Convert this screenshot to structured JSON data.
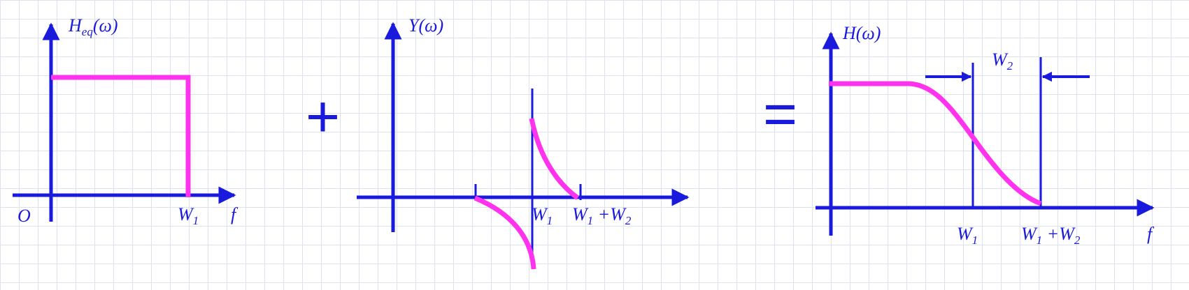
{
  "colors": {
    "axis": "#1a1adc",
    "curve": "#ff33ee",
    "grid": "#dde3ee"
  },
  "panel1": {
    "title_main": "H",
    "title_sub": "eq",
    "title_arg": "(ω)",
    "origin": "O",
    "w1_main": "W",
    "w1_sub": "1",
    "x_axis": "f"
  },
  "operator_plus": "+",
  "panel2": {
    "title": "Y(ω)",
    "w1_main": "W",
    "w1_sub": "1",
    "w1w2_a": "W",
    "w1w2_a_sub": "1",
    "w1w2_plus": " +",
    "w1w2_b": "W",
    "w1w2_b_sub": "2"
  },
  "operator_equals": "=",
  "panel3": {
    "title": "H(ω)",
    "w2_main": "W",
    "w2_sub": "2",
    "w1_main": "W",
    "w1_sub": "1",
    "w1w2_a": "W",
    "w1w2_a_sub": "1",
    "w1w2_plus": " +",
    "w1w2_b": "W",
    "w1w2_b_sub": "2",
    "x_axis": "f"
  }
}
